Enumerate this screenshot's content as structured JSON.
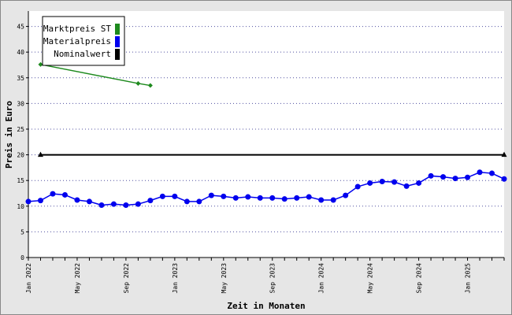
{
  "chart_data": {
    "type": "line",
    "title": "",
    "xlabel": "Zeit in Monaten",
    "ylabel": "Preis in Euro",
    "ylim": [
      0,
      48
    ],
    "yticks": [
      0,
      5,
      10,
      15,
      20,
      25,
      30,
      35,
      40,
      45
    ],
    "x_start": "2022-01",
    "month_count": 40,
    "xtick_labels": [
      {
        "month": 0,
        "label": "Jan 2022"
      },
      {
        "month": 4,
        "label": "May 2022"
      },
      {
        "month": 8,
        "label": "Sep 2022"
      },
      {
        "month": 12,
        "label": "Jan 2023"
      },
      {
        "month": 16,
        "label": "May 2023"
      },
      {
        "month": 20,
        "label": "Sep 2023"
      },
      {
        "month": 24,
        "label": "Jan 2024"
      },
      {
        "month": 28,
        "label": "May 2024"
      },
      {
        "month": 32,
        "label": "Sep 2024"
      },
      {
        "month": 36,
        "label": "Jan 2025"
      }
    ],
    "grid": "horizontal dotted",
    "legend_position": "top-left",
    "series": [
      {
        "name": "Marktpreis ST",
        "color": "#1e8a1e",
        "marker": "diamond",
        "points": [
          [
            1,
            37.6
          ],
          [
            9,
            33.9
          ],
          [
            10,
            33.5
          ]
        ]
      },
      {
        "name": "Materialpreis",
        "color": "#0000ee",
        "marker": "circle",
        "points": [
          [
            0,
            10.9
          ],
          [
            1,
            11.1
          ],
          [
            2,
            12.4
          ],
          [
            3,
            12.2
          ],
          [
            4,
            11.2
          ],
          [
            5,
            10.9
          ],
          [
            6,
            10.2
          ],
          [
            7,
            10.4
          ],
          [
            8,
            10.2
          ],
          [
            9,
            10.4
          ],
          [
            10,
            11.1
          ],
          [
            11,
            11.9
          ],
          [
            12,
            11.9
          ],
          [
            13,
            10.9
          ],
          [
            14,
            10.9
          ],
          [
            15,
            12.1
          ],
          [
            16,
            11.9
          ],
          [
            17,
            11.6
          ],
          [
            18,
            11.8
          ],
          [
            19,
            11.6
          ],
          [
            20,
            11.6
          ],
          [
            21,
            11.4
          ],
          [
            22,
            11.6
          ],
          [
            23,
            11.8
          ],
          [
            24,
            11.2
          ],
          [
            25,
            11.2
          ],
          [
            26,
            12.1
          ],
          [
            27,
            13.8
          ],
          [
            28,
            14.5
          ],
          [
            29,
            14.8
          ],
          [
            30,
            14.7
          ],
          [
            31,
            13.9
          ],
          [
            32,
            14.5
          ],
          [
            33,
            15.9
          ],
          [
            34,
            15.7
          ],
          [
            35,
            15.4
          ],
          [
            36,
            15.6
          ],
          [
            37,
            16.6
          ],
          [
            38,
            16.4
          ],
          [
            39,
            15.3
          ]
        ]
      },
      {
        "name": "Nominalwert",
        "color": "#000000",
        "marker": "triangle",
        "points": [
          [
            1,
            20
          ],
          [
            39,
            20
          ]
        ]
      }
    ]
  }
}
